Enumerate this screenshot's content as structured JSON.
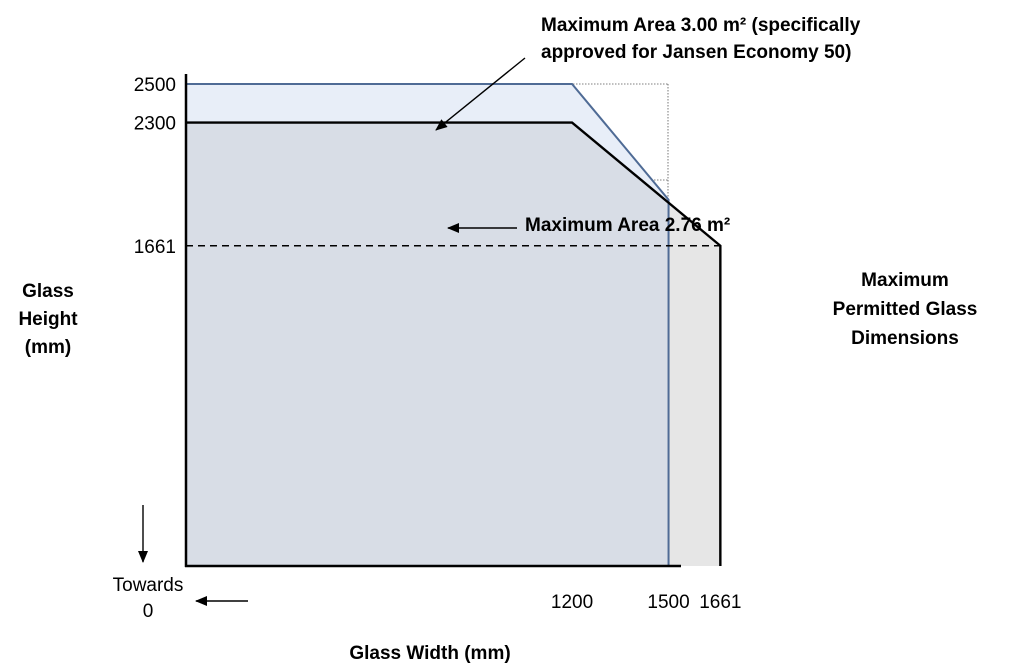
{
  "chart_data": {
    "type": "area",
    "title": "Maximum Permitted Glass Dimensions",
    "title_lines": [
      "Maximum",
      "Permitted Glass",
      "Dimensions"
    ],
    "xlabel": "Glass Width (mm)",
    "ylabel": "Glass Height (mm)",
    "ylabel_lines": [
      "Glass",
      "Height",
      "(mm)"
    ],
    "x_ticks": [
      "1200",
      "1500",
      "1661"
    ],
    "y_ticks": [
      "1661",
      "2300",
      "2500"
    ],
    "origin_note_lines": [
      "Towards",
      "0"
    ],
    "series": [
      {
        "name": "Maximum Area 3.00 m²",
        "label_lines": [
          "Maximum Area 3.00 m² (specifically",
          "approved for Jansen Economy 50)"
        ],
        "fill": "#e8eef8",
        "stroke": "#4f6b95",
        "x": [
          0,
          1200,
          1300,
          1400,
          1500,
          1500
        ],
        "y": [
          2500,
          2500,
          2300,
          2100,
          1900,
          0
        ]
      },
      {
        "name": "Maximum Area 2.76 m²",
        "label_lines": [
          "Maximum Area 2.76 m²"
        ],
        "fill": "#e6e6e6",
        "stroke": "#000000",
        "x": [
          0,
          1200,
          1661,
          1661
        ],
        "y": [
          2300,
          2300,
          1661,
          0
        ]
      }
    ],
    "overlap_fill": "#d8dde6",
    "reference_line": {
      "value": 1661,
      "to_x": 1661,
      "style": "dashed"
    },
    "grid": true
  }
}
